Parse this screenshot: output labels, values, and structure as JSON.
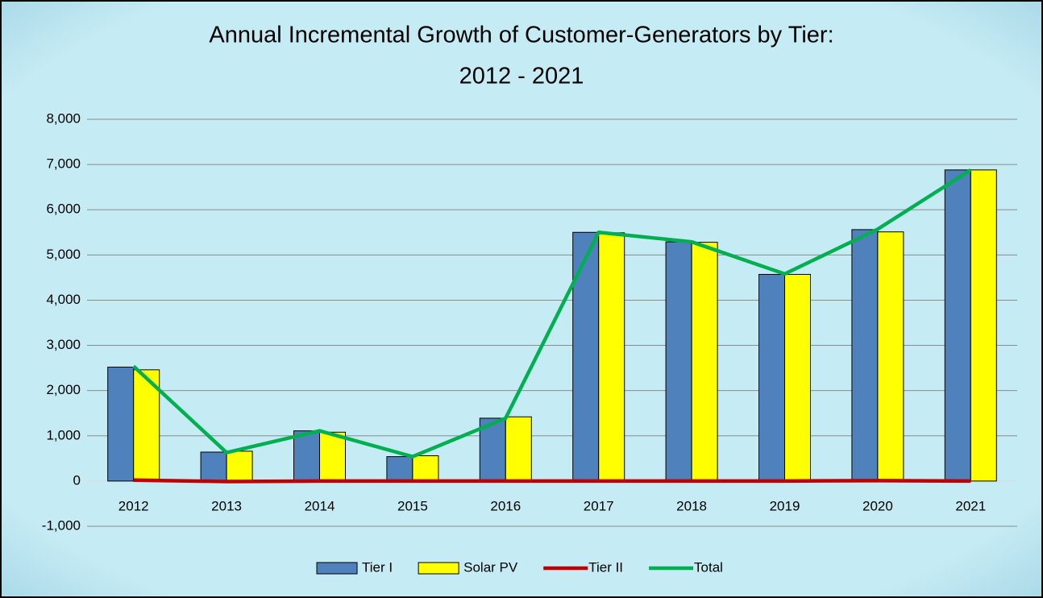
{
  "chart_data": {
    "type": "bar-line",
    "title": [
      "Annual Incremental Growth of Customer-Generators by Tier:",
      "2012 - 2021"
    ],
    "categories": [
      "2012",
      "2013",
      "2014",
      "2015",
      "2016",
      "2017",
      "2018",
      "2019",
      "2020",
      "2021"
    ],
    "series": [
      {
        "name": "Tier I",
        "kind": "bar",
        "color": "#4f81bd",
        "values": [
          2520,
          640,
          1110,
          540,
          1390,
          5500,
          5290,
          4570,
          5560,
          6880
        ]
      },
      {
        "name": "Solar PV",
        "kind": "bar",
        "color": "#ffff00",
        "values": [
          2460,
          660,
          1080,
          560,
          1420,
          5490,
          5280,
          4570,
          5510,
          6880
        ]
      },
      {
        "name": "Tier II",
        "kind": "line",
        "color": "#c00000",
        "values": [
          20,
          -10,
          0,
          0,
          0,
          0,
          0,
          0,
          10,
          0
        ]
      },
      {
        "name": "Total",
        "kind": "line",
        "color": "#00b050",
        "values": [
          2540,
          630,
          1110,
          540,
          1390,
          5500,
          5290,
          4580,
          5570,
          6880
        ]
      }
    ],
    "ylim": [
      -1000,
      8000
    ],
    "yticks": [
      {
        "value": -1000,
        "label": "-1,000"
      },
      0,
      {
        "value": 1000,
        "label": "1,000"
      },
      {
        "value": 2000,
        "label": "2,000"
      },
      {
        "value": 3000,
        "label": "3,000"
      },
      {
        "value": 4000,
        "label": "4,000"
      },
      {
        "value": 5000,
        "label": "5,000"
      },
      {
        "value": 6000,
        "label": "6,000"
      },
      {
        "value": 7000,
        "label": "7,000"
      },
      {
        "value": 8000,
        "label": "8,000"
      }
    ],
    "grid": true,
    "legend": "bottom"
  }
}
